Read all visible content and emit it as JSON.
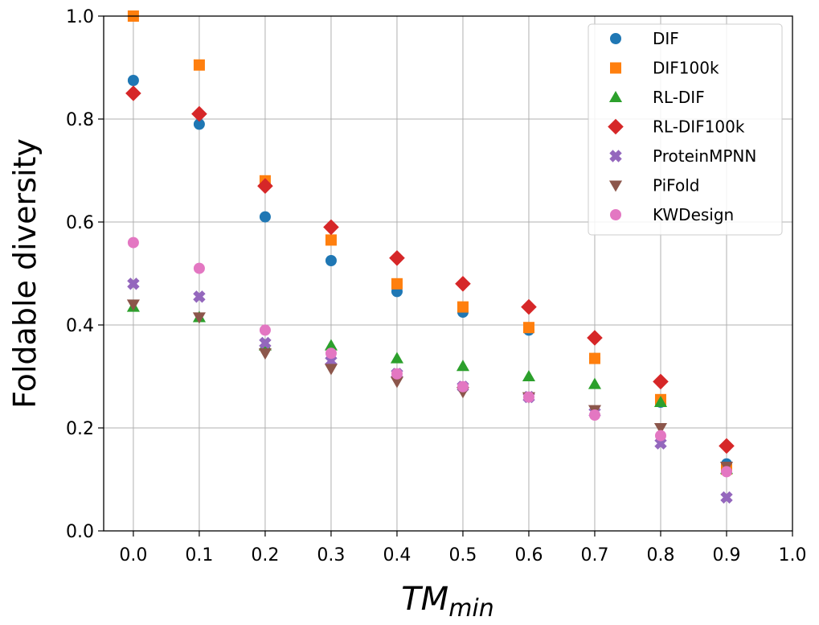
{
  "chart_data": {
    "type": "scatter",
    "title": "",
    "xlabel_main": "TM",
    "xlabel_sub": "min",
    "ylabel": "Foldable diversity",
    "xlim": [
      -0.045,
      1.0
    ],
    "ylim": [
      0.0,
      1.0
    ],
    "xticks": [
      "0.0",
      "0.1",
      "0.2",
      "0.3",
      "0.4",
      "0.5",
      "0.6",
      "0.7",
      "0.8",
      "0.9",
      "1.0"
    ],
    "yticks": [
      "0.0",
      "0.2",
      "0.4",
      "0.6",
      "0.8",
      "1.0"
    ],
    "grid": true,
    "legend_position": "top-right",
    "x": [
      0.0,
      0.1,
      0.2,
      0.3,
      0.4,
      0.5,
      0.6,
      0.7,
      0.8,
      0.9
    ],
    "series": [
      {
        "name": "DIF",
        "marker": "circle",
        "color": "#1f77b4",
        "values": [
          0.875,
          0.79,
          0.61,
          0.525,
          0.465,
          0.425,
          0.39,
          0.335,
          0.25,
          0.13
        ]
      },
      {
        "name": "DIF100k",
        "marker": "square",
        "color": "#ff7f0e",
        "values": [
          1.0,
          0.905,
          0.68,
          0.565,
          0.48,
          0.435,
          0.395,
          0.335,
          0.255,
          0.12
        ]
      },
      {
        "name": "RL-DIF",
        "marker": "triangle-up",
        "color": "#2ca02c",
        "values": [
          0.435,
          0.415,
          0.36,
          0.36,
          0.335,
          0.32,
          0.3,
          0.285,
          0.25,
          0.12
        ]
      },
      {
        "name": "RL-DIF100k",
        "marker": "diamond",
        "color": "#d62728",
        "values": [
          0.85,
          0.81,
          0.67,
          0.59,
          0.53,
          0.48,
          0.435,
          0.375,
          0.29,
          0.165
        ]
      },
      {
        "name": "ProteinMPNN",
        "marker": "x",
        "color": "#9467bd",
        "values": [
          0.48,
          0.455,
          0.365,
          0.33,
          0.305,
          0.28,
          0.26,
          0.23,
          0.17,
          0.065
        ]
      },
      {
        "name": "PiFold",
        "marker": "triangle-down",
        "color": "#8c564b",
        "values": [
          0.44,
          0.415,
          0.345,
          0.315,
          0.29,
          0.27,
          0.26,
          0.235,
          0.2,
          0.125
        ]
      },
      {
        "name": "KWDesign",
        "marker": "circle",
        "color": "#e377c2",
        "values": [
          0.56,
          0.51,
          0.39,
          0.345,
          0.305,
          0.28,
          0.26,
          0.225,
          0.185,
          0.115
        ]
      }
    ]
  }
}
